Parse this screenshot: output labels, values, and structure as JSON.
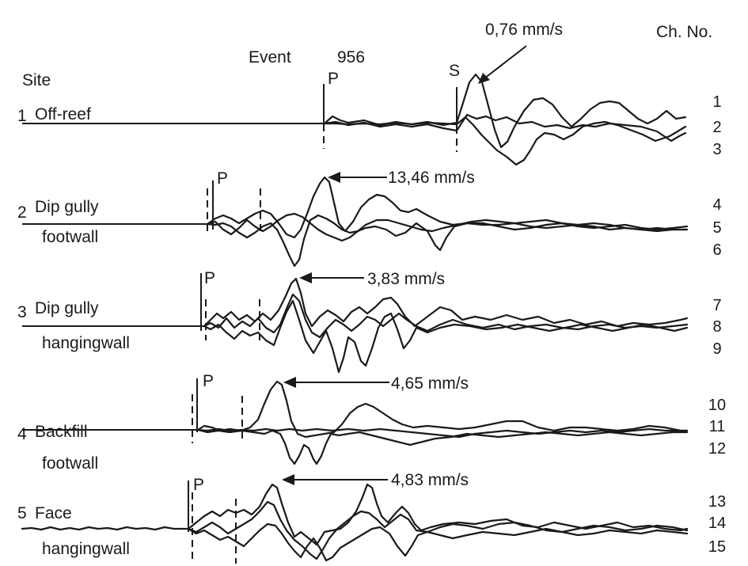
{
  "header": {
    "event_label": "Event",
    "event_number": "956",
    "site_header": "Site",
    "channel_header": "Ch. No."
  },
  "phase_labels": {
    "p": "P",
    "s": "S"
  },
  "sites": [
    {
      "number": "1",
      "line1": "Off-reef",
      "line2": "",
      "peak": "0,76 mm/s",
      "channels": [
        "1",
        "2",
        "3"
      ]
    },
    {
      "number": "2",
      "line1": "Dip gully",
      "line2": "footwall",
      "peak": "13,46 mm/s",
      "channels": [
        "4",
        "5",
        "6"
      ]
    },
    {
      "number": "3",
      "line1": "Dip gully",
      "line2": "hangingwall",
      "peak": "3,83 mm/s",
      "channels": [
        "7",
        "8",
        "9"
      ]
    },
    {
      "number": "4",
      "line1": "Backfill",
      "line2": "footwall",
      "peak": "4,65 mm/s",
      "channels": [
        "10",
        "11",
        "12"
      ]
    },
    {
      "number": "5",
      "line1": "Face",
      "line2": "hangingwall",
      "peak": "4,83 mm/s",
      "channels": [
        "13",
        "14",
        "15"
      ]
    }
  ],
  "colors": {
    "ink": "#1a1a1a",
    "background": "#ffffff"
  }
}
